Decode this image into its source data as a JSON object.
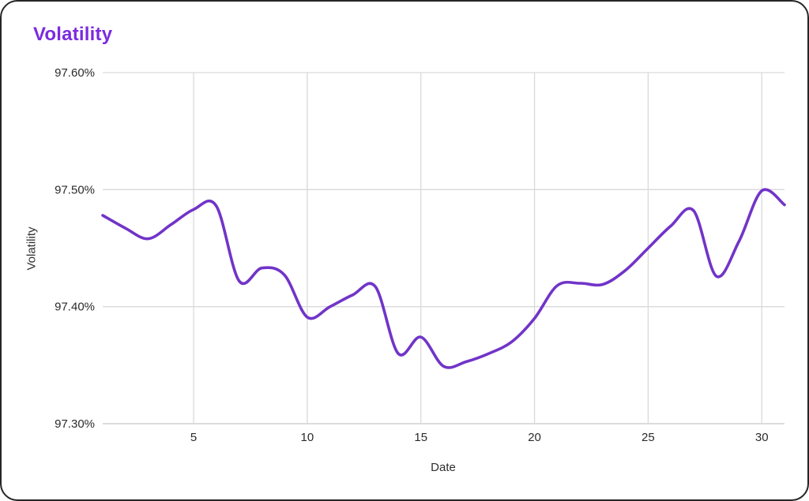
{
  "page": {
    "title": "Volatility"
  },
  "colors": {
    "line": "#7134c8",
    "title_text": "#7c2be0",
    "grid": "#d9d9d9",
    "axis_line": "#c7c7c7",
    "tick_text": "#2b2b2b",
    "frame_border": "#262626",
    "background": "#ffffff"
  },
  "chart_data": {
    "type": "line",
    "title": "Volatility",
    "xlabel": "Date",
    "ylabel": "Volatility",
    "x": [
      1,
      2,
      3,
      4,
      5,
      6,
      7,
      8,
      9,
      10,
      11,
      12,
      13,
      14,
      15,
      16,
      17,
      18,
      19,
      20,
      21,
      22,
      23,
      24,
      25,
      26,
      27,
      28,
      29,
      30,
      31
    ],
    "series": [
      {
        "name": "Volatility",
        "values": [
          97.478,
          97.467,
          97.458,
          97.47,
          97.483,
          97.486,
          97.422,
          97.433,
          97.427,
          97.391,
          97.4,
          97.41,
          97.417,
          97.36,
          97.374,
          97.349,
          97.353,
          97.36,
          97.37,
          97.39,
          97.418,
          97.42,
          97.419,
          97.431,
          97.45,
          97.469,
          97.482,
          97.426,
          97.456,
          97.499,
          97.487
        ]
      }
    ],
    "xlim": [
      1,
      31
    ],
    "ylim": [
      97.3,
      97.6
    ],
    "xticks": [
      5,
      10,
      15,
      20,
      25,
      30
    ],
    "yticks": [
      97.3,
      97.4,
      97.5,
      97.6
    ],
    "ytick_labels": [
      "97.30%",
      "97.40%",
      "97.50%",
      "97.60%"
    ],
    "grid": true,
    "legend_position": "none",
    "smooth": true
  }
}
